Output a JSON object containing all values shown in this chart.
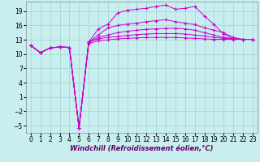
{
  "title": "",
  "xlabel": "Windchill (Refroidissement éolien,°C)",
  "bg_color": "#c8eef0",
  "grid_color": "#a0d4c8",
  "line_color": "#cc00cc",
  "marker": "+",
  "xlim": [
    -0.5,
    23.5
  ],
  "ylim": [
    -6.5,
    21.0
  ],
  "xticks": [
    0,
    1,
    2,
    3,
    4,
    5,
    6,
    7,
    8,
    9,
    10,
    11,
    12,
    13,
    14,
    15,
    16,
    17,
    18,
    19,
    20,
    21,
    22,
    23
  ],
  "yticks": [
    -5,
    -2,
    1,
    4,
    7,
    10,
    13,
    16,
    19
  ],
  "lines": [
    [
      11.8,
      10.3,
      11.3,
      11.5,
      11.4,
      -5.5,
      12.5,
      15.3,
      16.3,
      18.6,
      19.2,
      19.4,
      19.6,
      20.0,
      20.3,
      19.4,
      19.6,
      20.0,
      18.0,
      16.2,
      14.2,
      13.2,
      13.1,
      13.1
    ],
    [
      11.8,
      10.3,
      11.3,
      11.5,
      11.4,
      -5.5,
      12.5,
      14.0,
      15.5,
      16.0,
      16.3,
      16.5,
      16.8,
      17.0,
      17.2,
      16.8,
      16.5,
      16.2,
      15.5,
      15.0,
      14.5,
      13.5,
      13.1,
      13.1
    ],
    [
      11.8,
      10.3,
      11.3,
      11.5,
      11.4,
      -5.5,
      12.5,
      13.5,
      14.0,
      14.5,
      14.8,
      15.0,
      15.2,
      15.3,
      15.4,
      15.4,
      15.3,
      15.0,
      14.5,
      14.0,
      13.5,
      13.2,
      13.1,
      13.1
    ],
    [
      11.8,
      10.3,
      11.3,
      11.5,
      11.4,
      -5.5,
      12.5,
      13.2,
      13.5,
      13.7,
      13.9,
      14.1,
      14.2,
      14.3,
      14.3,
      14.3,
      14.2,
      14.0,
      13.8,
      13.5,
      13.3,
      13.2,
      13.1,
      13.1
    ],
    [
      11.8,
      10.3,
      11.3,
      11.5,
      11.4,
      -5.5,
      12.2,
      12.8,
      13.0,
      13.2,
      13.3,
      13.4,
      13.5,
      13.5,
      13.5,
      13.5,
      13.4,
      13.3,
      13.2,
      13.1,
      13.1,
      13.1,
      13.1,
      13.1
    ]
  ],
  "xlabel_color": "#660066",
  "xlabel_fontsize": 6,
  "tick_fontsize": 5.5,
  "linewidth": 0.7,
  "markersize": 2.5,
  "spine_color": "#888888"
}
